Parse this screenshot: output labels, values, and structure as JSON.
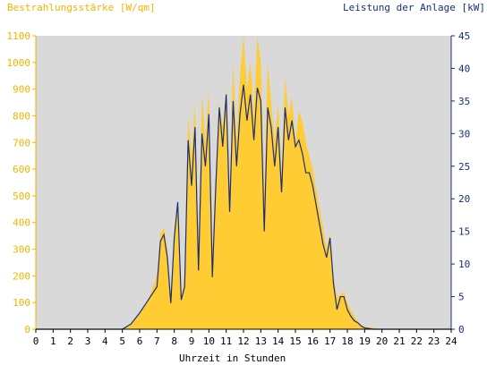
{
  "chart_data": {
    "type": "area",
    "ylabel_left": "Bestrahlungsstärke [W/qm]",
    "ylabel_right": "Leistung der Anlage [kW]",
    "xlabel": "Uhrzeit in Stunden",
    "xlim": [
      0,
      24
    ],
    "ylim_left": [
      0,
      1100
    ],
    "ylim_right": [
      0,
      45
    ],
    "x_ticks": [
      "0",
      "1",
      "2",
      "3",
      "4",
      "5",
      "6",
      "7",
      "8",
      "9",
      "10",
      "11",
      "12",
      "13",
      "14",
      "15",
      "16",
      "17",
      "18",
      "19",
      "20",
      "21",
      "22",
      "23",
      "24"
    ],
    "y_ticks_left": [
      "0",
      "100",
      "200",
      "300",
      "400",
      "500",
      "600",
      "700",
      "800",
      "900",
      "1000",
      "1100"
    ],
    "y_ticks_right": [
      "0",
      "5",
      "10",
      "15",
      "20",
      "25",
      "30",
      "35",
      "40",
      "45"
    ],
    "grid": false,
    "colors": {
      "irradiance_fill": "#ffcc33",
      "power_line": "#1a2f7a",
      "plot_bg": "#d9d9d9"
    },
    "series": [
      {
        "name": "Bestrahlungsstärke [W/qm]",
        "axis": "left",
        "style": "area",
        "x": [
          5.0,
          5.5,
          6.0,
          6.5,
          7.0,
          7.2,
          7.4,
          7.6,
          7.8,
          8.0,
          8.2,
          8.4,
          8.6,
          8.8,
          9.0,
          9.2,
          9.4,
          9.6,
          9.8,
          10.0,
          10.2,
          10.4,
          10.6,
          10.8,
          11.0,
          11.2,
          11.4,
          11.6,
          11.8,
          12.0,
          12.2,
          12.4,
          12.6,
          12.8,
          13.0,
          13.2,
          13.4,
          13.6,
          13.8,
          14.0,
          14.2,
          14.4,
          14.6,
          14.8,
          15.0,
          15.2,
          15.4,
          15.6,
          15.8,
          16.0,
          16.2,
          16.4,
          16.6,
          16.8,
          17.0,
          17.2,
          17.4,
          17.6,
          17.8,
          18.0,
          18.2,
          18.4,
          18.6,
          18.8,
          19.0,
          19.5,
          20.0
        ],
        "values": [
          0,
          20,
          60,
          110,
          200,
          360,
          380,
          300,
          120,
          380,
          480,
          120,
          200,
          800,
          650,
          850,
          300,
          880,
          700,
          900,
          300,
          600,
          850,
          760,
          900,
          500,
          1000,
          700,
          950,
          1100,
          900,
          1000,
          800,
          1100,
          1000,
          500,
          1000,
          850,
          700,
          850,
          580,
          950,
          800,
          870,
          700,
          820,
          780,
          700,
          650,
          600,
          520,
          450,
          380,
          300,
          360,
          200,
          120,
          130,
          140,
          100,
          70,
          50,
          30,
          15,
          10,
          5,
          0
        ]
      },
      {
        "name": "Leistung der Anlage [kW]",
        "axis": "right",
        "style": "line",
        "x": [
          5.0,
          5.5,
          6.0,
          6.5,
          7.0,
          7.2,
          7.4,
          7.6,
          7.8,
          8.0,
          8.2,
          8.4,
          8.6,
          8.8,
          9.0,
          9.2,
          9.4,
          9.6,
          9.8,
          10.0,
          10.2,
          10.4,
          10.6,
          10.8,
          11.0,
          11.2,
          11.4,
          11.6,
          11.8,
          12.0,
          12.2,
          12.4,
          12.6,
          12.8,
          13.0,
          13.2,
          13.4,
          13.6,
          13.8,
          14.0,
          14.2,
          14.4,
          14.6,
          14.8,
          15.0,
          15.2,
          15.4,
          15.6,
          15.8,
          16.0,
          16.2,
          16.4,
          16.6,
          16.8,
          17.0,
          17.2,
          17.4,
          17.6,
          17.8,
          18.0,
          18.2,
          18.4,
          18.6,
          18.8,
          19.0,
          19.5,
          20.0
        ],
        "values": [
          0,
          0.8,
          2.5,
          4.5,
          6.5,
          13.5,
          14.5,
          11,
          4,
          14,
          19.5,
          4.5,
          6.5,
          29,
          22,
          31,
          9,
          30,
          25,
          33,
          8,
          22,
          34,
          28,
          36,
          18,
          35,
          25,
          33,
          37.5,
          32,
          36,
          29,
          37,
          35,
          15,
          34,
          31,
          25,
          31,
          21,
          34,
          29,
          32,
          28,
          29,
          27,
          24,
          24,
          22,
          19,
          16,
          13,
          11,
          14,
          7,
          3,
          5,
          5,
          3,
          2,
          1.3,
          1,
          0.5,
          0.2,
          0,
          0
        ]
      }
    ]
  }
}
